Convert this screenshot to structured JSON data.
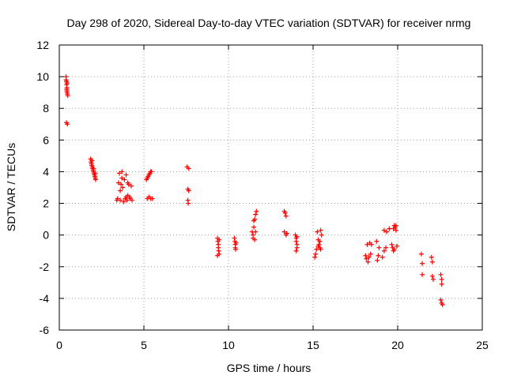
{
  "chart_data": {
    "type": "scatter",
    "title": "Day 298 of 2020, Sidereal Day-to-day VTEC variation (SDTVAR) for receiver nrmg",
    "xlabel": "GPS time / hours",
    "ylabel": "SDTVAR / TECUs",
    "xlim": [
      0,
      25
    ],
    "ylim": [
      -6,
      12
    ],
    "xticks": [
      0,
      5,
      10,
      15,
      20,
      25
    ],
    "yticks": [
      -6,
      -4,
      -2,
      0,
      2,
      4,
      6,
      8,
      10,
      12
    ],
    "grid": true,
    "marker": "+",
    "color": "#ff0000",
    "series": [
      {
        "name": "nrmg",
        "points": [
          [
            0.4,
            10.0
          ],
          [
            0.4,
            9.8
          ],
          [
            0.42,
            9.7
          ],
          [
            0.43,
            9.5
          ],
          [
            0.45,
            9.3
          ],
          [
            0.45,
            9.1
          ],
          [
            0.46,
            9.0
          ],
          [
            0.48,
            8.9
          ],
          [
            0.5,
            8.8
          ],
          [
            0.44,
            9.2
          ],
          [
            0.47,
            9.6
          ],
          [
            0.42,
            7.1
          ],
          [
            0.48,
            7.0
          ],
          [
            1.85,
            4.8
          ],
          [
            1.88,
            4.6
          ],
          [
            1.9,
            4.5
          ],
          [
            1.92,
            4.4
          ],
          [
            1.95,
            4.3
          ],
          [
            1.97,
            4.2
          ],
          [
            2.0,
            4.1
          ],
          [
            2.02,
            4.0
          ],
          [
            2.05,
            3.9
          ],
          [
            2.08,
            3.8
          ],
          [
            2.1,
            3.7
          ],
          [
            2.12,
            3.6
          ],
          [
            2.15,
            3.5
          ],
          [
            1.93,
            4.7
          ],
          [
            2.03,
            4.2
          ],
          [
            2.13,
            3.9
          ],
          [
            3.4,
            2.2
          ],
          [
            3.45,
            2.3
          ],
          [
            3.5,
            3.3
          ],
          [
            3.55,
            3.9
          ],
          [
            3.6,
            2.2
          ],
          [
            3.65,
            3.2
          ],
          [
            3.7,
            3.6
          ],
          [
            3.75,
            3.0
          ],
          [
            3.8,
            2.1
          ],
          [
            3.85,
            3.5
          ],
          [
            3.9,
            2.3
          ],
          [
            3.95,
            2.4
          ],
          [
            4.0,
            2.2
          ],
          [
            4.05,
            2.5
          ],
          [
            4.1,
            3.2
          ],
          [
            4.15,
            2.4
          ],
          [
            4.2,
            2.3
          ],
          [
            4.25,
            3.1
          ],
          [
            4.3,
            2.2
          ],
          [
            3.7,
            4.0
          ],
          [
            3.95,
            3.8
          ],
          [
            4.05,
            3.3
          ],
          [
            3.6,
            2.8
          ],
          [
            5.15,
            3.5
          ],
          [
            5.2,
            3.6
          ],
          [
            5.25,
            3.7
          ],
          [
            5.3,
            3.8
          ],
          [
            5.35,
            3.9
          ],
          [
            5.4,
            4.0
          ],
          [
            5.45,
            4.0
          ],
          [
            5.2,
            2.3
          ],
          [
            5.3,
            2.4
          ],
          [
            5.4,
            2.3
          ],
          [
            5.5,
            2.3
          ],
          [
            7.55,
            4.3
          ],
          [
            7.65,
            4.2
          ],
          [
            7.6,
            2.9
          ],
          [
            7.65,
            2.8
          ],
          [
            7.6,
            2.2
          ],
          [
            7.62,
            2.0
          ],
          [
            9.35,
            -0.2
          ],
          [
            9.37,
            -0.4
          ],
          [
            9.4,
            -0.6
          ],
          [
            9.4,
            -0.8
          ],
          [
            9.42,
            -1.0
          ],
          [
            9.45,
            -1.2
          ],
          [
            9.35,
            -1.3
          ],
          [
            9.45,
            -0.3
          ],
          [
            10.35,
            -0.2
          ],
          [
            10.38,
            -0.4
          ],
          [
            10.4,
            -0.6
          ],
          [
            10.4,
            -0.8
          ],
          [
            10.42,
            -0.9
          ],
          [
            10.45,
            -0.5
          ],
          [
            11.4,
            0.2
          ],
          [
            11.45,
            0.0
          ],
          [
            11.5,
            0.5
          ],
          [
            11.55,
            1.0
          ],
          [
            11.6,
            1.3
          ],
          [
            11.65,
            1.5
          ],
          [
            11.45,
            -0.2
          ],
          [
            11.55,
            -0.3
          ],
          [
            11.6,
            0.2
          ],
          [
            11.5,
            0.9
          ],
          [
            13.3,
            1.5
          ],
          [
            13.35,
            1.4
          ],
          [
            13.4,
            1.2
          ],
          [
            13.3,
            0.2
          ],
          [
            13.4,
            0.0
          ],
          [
            13.45,
            0.1
          ],
          [
            13.95,
            0.0
          ],
          [
            14.0,
            -0.2
          ],
          [
            14.0,
            -0.4
          ],
          [
            14.05,
            -0.6
          ],
          [
            14.05,
            -0.8
          ],
          [
            14.0,
            -1.0
          ],
          [
            14.05,
            -0.1
          ],
          [
            15.1,
            -1.4
          ],
          [
            15.15,
            -1.2
          ],
          [
            15.2,
            -0.9
          ],
          [
            15.25,
            0.2
          ],
          [
            15.3,
            -0.7
          ],
          [
            15.35,
            -0.6
          ],
          [
            15.4,
            -0.4
          ],
          [
            15.45,
            0.3
          ],
          [
            15.4,
            -0.8
          ],
          [
            15.5,
            0.0
          ],
          [
            15.3,
            -0.3
          ],
          [
            15.45,
            -0.9
          ],
          [
            18.1,
            -1.3
          ],
          [
            18.15,
            -1.5
          ],
          [
            18.2,
            -0.6
          ],
          [
            18.25,
            -1.7
          ],
          [
            18.3,
            -1.4
          ],
          [
            18.35,
            -0.5
          ],
          [
            18.4,
            -1.2
          ],
          [
            18.45,
            -0.6
          ],
          [
            18.75,
            -0.4
          ],
          [
            18.8,
            -1.6
          ],
          [
            18.85,
            -1.3
          ],
          [
            18.9,
            -0.8
          ],
          [
            19.1,
            -1.4
          ],
          [
            19.2,
            -1.0
          ],
          [
            19.3,
            -0.8
          ],
          [
            19.2,
            0.3
          ],
          [
            19.35,
            0.2
          ],
          [
            19.5,
            0.4
          ],
          [
            19.65,
            -0.6
          ],
          [
            19.7,
            -0.8
          ],
          [
            19.75,
            -1.0
          ],
          [
            19.8,
            0.6
          ],
          [
            19.85,
            0.5
          ],
          [
            19.9,
            0.3
          ],
          [
            19.95,
            -0.7
          ],
          [
            19.75,
            0.4
          ],
          [
            19.9,
            0.6
          ],
          [
            19.8,
            -0.9
          ],
          [
            21.4,
            -1.2
          ],
          [
            21.45,
            -1.8
          ],
          [
            21.45,
            -2.5
          ],
          [
            22.0,
            -1.4
          ],
          [
            22.05,
            -1.7
          ],
          [
            22.05,
            -2.6
          ],
          [
            22.1,
            -2.8
          ],
          [
            22.55,
            -2.5
          ],
          [
            22.6,
            -2.8
          ],
          [
            22.6,
            -3.1
          ],
          [
            22.55,
            -4.1
          ],
          [
            22.6,
            -4.3
          ],
          [
            22.65,
            -4.4
          ]
        ]
      }
    ]
  }
}
